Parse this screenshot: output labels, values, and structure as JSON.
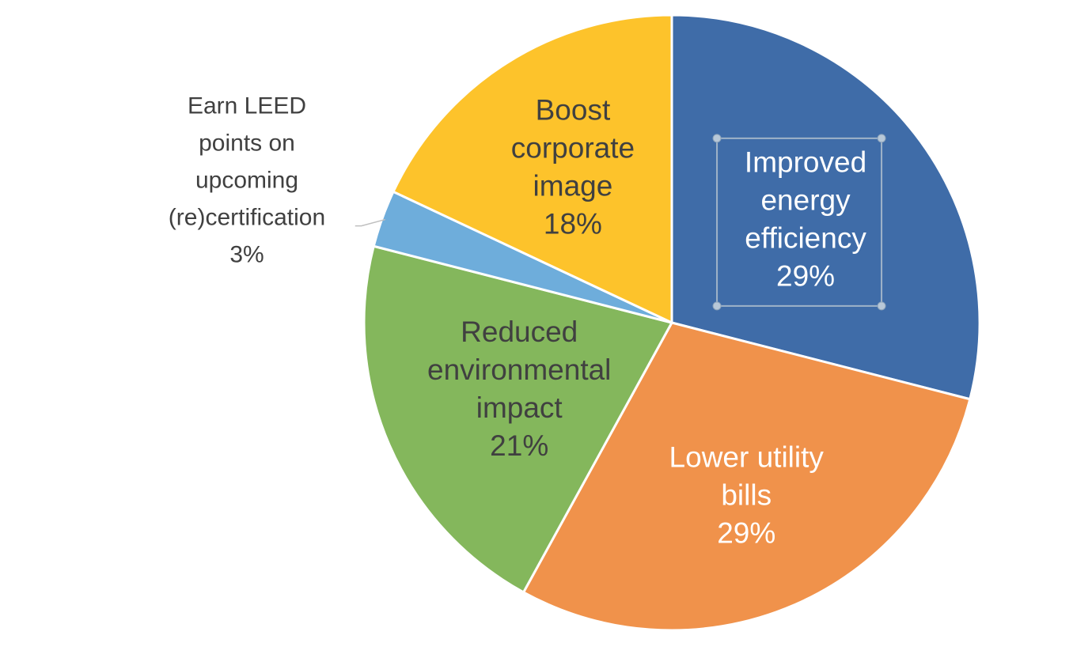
{
  "chart_data": {
    "type": "pie",
    "title": "",
    "start_angle_deg": 0,
    "direction": "clockwise",
    "slice_border_color": "#ffffff",
    "slices": [
      {
        "category_lines": [
          "Improved",
          "energy",
          "efficiency"
        ],
        "value": 29,
        "percent_label": "29%",
        "color": "#3f6ca8",
        "label_color": "#ffffff",
        "label_position": "inside"
      },
      {
        "category_lines": [
          "Lower utility",
          "bills"
        ],
        "value": 29,
        "percent_label": "29%",
        "color": "#f0924b",
        "label_color": "#ffffff",
        "label_position": "inside"
      },
      {
        "category_lines": [
          "Reduced",
          "environmental",
          "impact"
        ],
        "value": 21,
        "percent_label": "21%",
        "color": "#84b75c",
        "label_color": "#404040",
        "label_position": "inside"
      },
      {
        "category_lines": [
          "Earn LEED",
          "points on",
          "upcoming",
          "(re)certification"
        ],
        "value": 3,
        "percent_label": "3%",
        "color": "#6eaddb",
        "label_color": "#404040",
        "label_position": "outside-left"
      },
      {
        "category_lines": [
          "Boost",
          "corporate",
          "image"
        ],
        "value": 18,
        "percent_label": "18%",
        "color": "#fdc32b",
        "label_color": "#404040",
        "label_position": "inside"
      }
    ]
  }
}
